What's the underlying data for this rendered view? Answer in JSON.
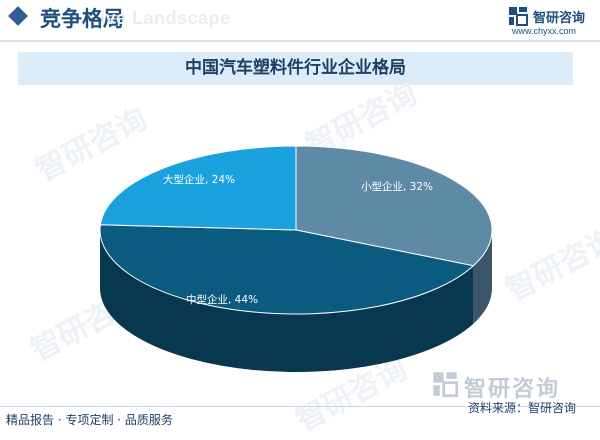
{
  "header": {
    "section_title": "竞争格局",
    "section_subtitle": "ive Landscape"
  },
  "brand": {
    "name": "智研咨询",
    "url": "www.chyxx.com"
  },
  "watermark": {
    "text": "智研咨询"
  },
  "footer": {
    "left_text": "精品报告 · 专项定制 · 品质服务",
    "source_text": "资料来源：智研咨询"
  },
  "colors": {
    "small": "#5e8aa6",
    "medium": "#0b5a80",
    "large": "#1aa2df",
    "accent": "#1f4f80"
  },
  "chart_data": {
    "type": "pie",
    "title": "中国汽车塑料件行业企业格局",
    "slices": [
      {
        "label": "小型企业, 32%",
        "value": 32
      },
      {
        "label": "中型企业, 44%",
        "value": 44
      },
      {
        "label": "大型企业, 24%",
        "value": 24
      }
    ]
  }
}
